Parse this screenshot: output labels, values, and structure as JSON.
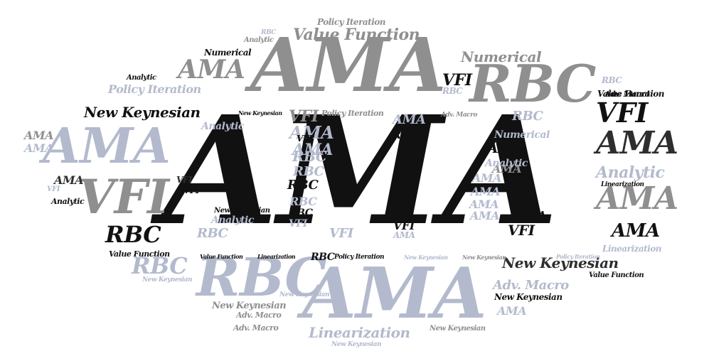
{
  "words": [
    "AMA",
    "AMA",
    "AMA",
    "AMA",
    "AMA",
    "AMA",
    "AMA",
    "AMA",
    "AMA",
    "AMA",
    "AMA",
    "AMA",
    "AMA",
    "RBC",
    "RBC",
    "RBC",
    "RBC",
    "RBC",
    "RBC",
    "RBC",
    "VFI",
    "VFI",
    "VFI",
    "VFI",
    "New Keynesian",
    "New Keynesian",
    "New Keynesian",
    "New Keynesian",
    "New Keynesian",
    "Value Function",
    "Value Function",
    "Policy Iteration",
    "Policy Iteration",
    "Linearization",
    "Linearization",
    "Numerical",
    "Numerical",
    "Analytic",
    "Analytic",
    "Analytic",
    "Adv. Macro",
    "Adv. Macro"
  ],
  "colors": {
    "black": "#111111",
    "dark": "#2e2e2e",
    "gray": "#8f8f8f",
    "blue": "#b3bacd",
    "background": "#ffffff"
  }
}
